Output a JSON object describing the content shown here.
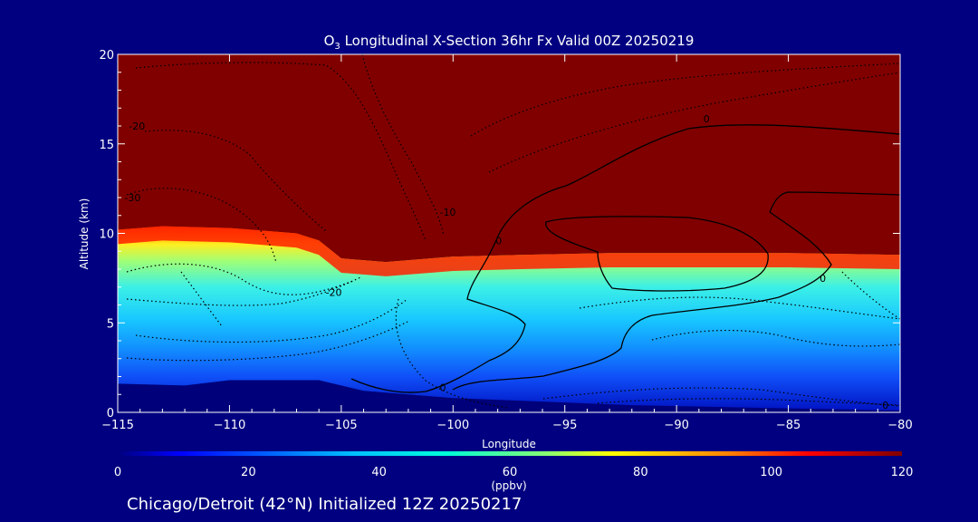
{
  "chart_data": {
    "type": "heatmap",
    "title": "O",
    "title_sub": "3",
    "title_rest": " Longitudinal X-Section 36hr  Fx Valid 00Z 20250219",
    "xlabel": "Longitude",
    "ylabel": "Altitude (km)",
    "xlim": [
      -115,
      -80
    ],
    "ylim": [
      0,
      20
    ],
    "x_ticks": [
      -115,
      -110,
      -105,
      -100,
      -95,
      -90,
      -85,
      -80
    ],
    "x_tick_labels": [
      "−115",
      "−110",
      "−105",
      "−100",
      "−95",
      "−90",
      "−85",
      "−80"
    ],
    "y_ticks": [
      0,
      5,
      10,
      15,
      20
    ],
    "y_tick_labels": [
      "0",
      "5",
      "10",
      "15",
      "20"
    ],
    "colorbar": {
      "label": "(ppbv)",
      "range": [
        0,
        120
      ],
      "ticks": [
        0,
        20,
        40,
        60,
        80,
        100,
        120
      ],
      "tick_labels": [
        "0",
        "20",
        "40",
        "60",
        "80",
        "100",
        "120"
      ]
    },
    "field": {
      "description_units": "ppbv",
      "background_value": 120,
      "tropopause_km": [
        [
          -115,
          10.2
        ],
        [
          -113,
          10.4
        ],
        [
          -110,
          10.3
        ],
        [
          -107,
          10.0
        ],
        [
          -106,
          9.6
        ],
        [
          -105,
          8.6
        ],
        [
          -103,
          8.4
        ],
        [
          -100,
          8.7
        ],
        [
          -97,
          8.8
        ],
        [
          -93,
          8.9
        ],
        [
          -90,
          8.9
        ],
        [
          -85,
          8.9
        ],
        [
          -80,
          8.8
        ]
      ],
      "surface_km": [
        [
          -115,
          1.6
        ],
        [
          -112,
          1.5
        ],
        [
          -110,
          1.8
        ],
        [
          -106,
          1.8
        ],
        [
          -104,
          1.2
        ],
        [
          -102,
          1.0
        ],
        [
          -100,
          0.8
        ],
        [
          -96,
          0.6
        ],
        [
          -92,
          0.4
        ],
        [
          -88,
          0.3
        ],
        [
          -84,
          0.2
        ],
        [
          -80,
          0.1
        ]
      ]
    },
    "contour_labels": [
      {
        "text": "-20",
        "x": -114.5,
        "y": 15.8
      },
      {
        "text": "-30",
        "x": -114.7,
        "y": 11.8
      },
      {
        "text": "-20",
        "x": -105.7,
        "y": 6.5
      },
      {
        "text": "-10",
        "x": -100.6,
        "y": 11.0
      },
      {
        "text": "-10",
        "x": -84.3,
        "y": 20.0
      },
      {
        "text": "0",
        "x": -98.1,
        "y": 9.4
      },
      {
        "text": "0",
        "x": -88.8,
        "y": 16.2
      },
      {
        "text": "0",
        "x": -83.6,
        "y": 7.3
      },
      {
        "text": "0",
        "x": -100.6,
        "y": 1.2
      },
      {
        "text": "0",
        "x": -80.8,
        "y": 0.2
      }
    ]
  },
  "footer": {
    "run_label": "Chicago/Detroit (42°N) Initialized 12Z 20250217"
  },
  "colors": {
    "background": "#000080",
    "stratosphere": "#800000",
    "surface": "#00007a"
  }
}
